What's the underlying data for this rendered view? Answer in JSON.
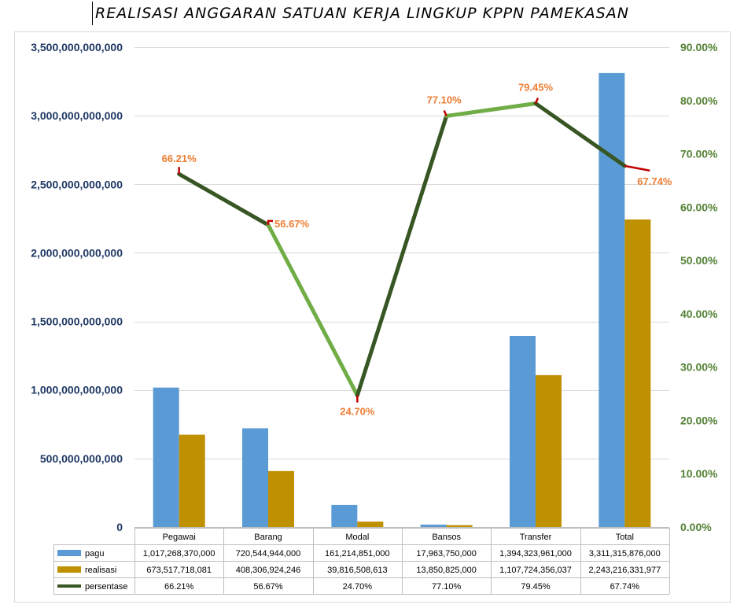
{
  "chart_data": {
    "type": "bar",
    "title": "REALISASI ANGGARAN SATUAN KERJA LINGKUP KPPN PAMEKASAN",
    "categories": [
      "Pegawai",
      "Barang",
      "Modal",
      "Bansos",
      "Transfer",
      "Total"
    ],
    "series": [
      {
        "name": "pagu",
        "type": "bar",
        "axis": "left",
        "color": "#5b9bd5",
        "values": [
          1017268370000,
          720544944000,
          161214851000,
          17963750000,
          1394323961000,
          3311315876000
        ],
        "labels": [
          "1,017,268,370,000",
          "720,544,944,000",
          "161,214,851,000",
          "17,963,750,000",
          "1,394,323,961,000",
          "3,311,315,876,000"
        ]
      },
      {
        "name": "realisasi",
        "type": "bar",
        "axis": "left",
        "color": "#bf9000",
        "values": [
          673517718081,
          408306924246,
          39816508613,
          13850825000,
          1107724356037,
          2243216331977
        ],
        "labels": [
          "673,517,718,081",
          "408,306,924,246",
          "39,816,508,613",
          "13,850,825,000",
          "1,107,724,356,037",
          "2,243,216,331,977"
        ]
      },
      {
        "name": "persentase",
        "type": "line",
        "axis": "right",
        "color": "#375623",
        "values": [
          66.21,
          56.67,
          24.7,
          77.1,
          79.45,
          67.74
        ],
        "labels": [
          "66.21%",
          "56.67%",
          "24.70%",
          "77.10%",
          "79.45%",
          "67.74%"
        ]
      }
    ],
    "y_left": {
      "min": 0,
      "max": 3500000000000,
      "ticks": [
        "0",
        "500,000,000,000",
        "1,000,000,000,000",
        "1,500,000,000,000",
        "2,000,000,000,000",
        "2,500,000,000,000",
        "3,000,000,000,000",
        "3,500,000,000,000"
      ],
      "color": "#1f3864"
    },
    "y_right": {
      "min": 0,
      "max": 90,
      "ticks": [
        "0.00%",
        "10.00%",
        "20.00%",
        "30.00%",
        "40.00%",
        "50.00%",
        "60.00%",
        "70.00%",
        "80.00%",
        "90.00%"
      ],
      "color": "#548235"
    },
    "data_label_color": "#ed7d31",
    "line_highlight_color": "#70ad47",
    "line_marker_color": "#c00000",
    "grid": true,
    "legend": "data-table"
  }
}
